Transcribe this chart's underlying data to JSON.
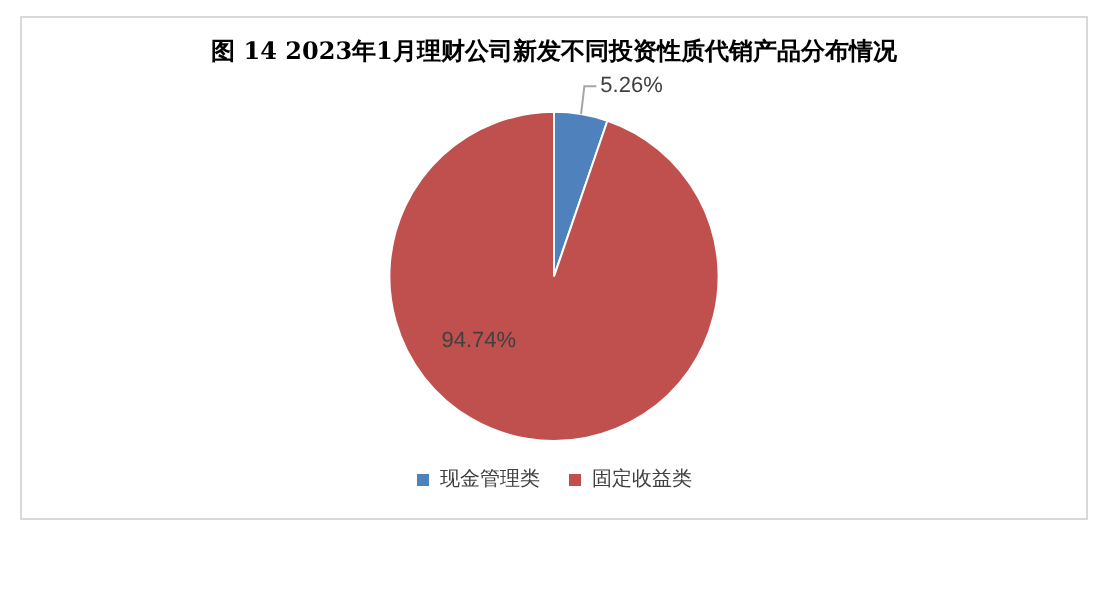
{
  "chart_data": {
    "type": "pie",
    "title": "图 14 2023年1月理财公司新发不同投资性质代销产品分布情况",
    "categories": [
      "现金管理类",
      "固定收益类"
    ],
    "values": [
      5.26,
      94.74
    ],
    "colors": [
      "#4f81bd",
      "#c0504d"
    ],
    "value_labels": [
      "5.26%",
      "94.74%"
    ],
    "legend": "bottom"
  }
}
